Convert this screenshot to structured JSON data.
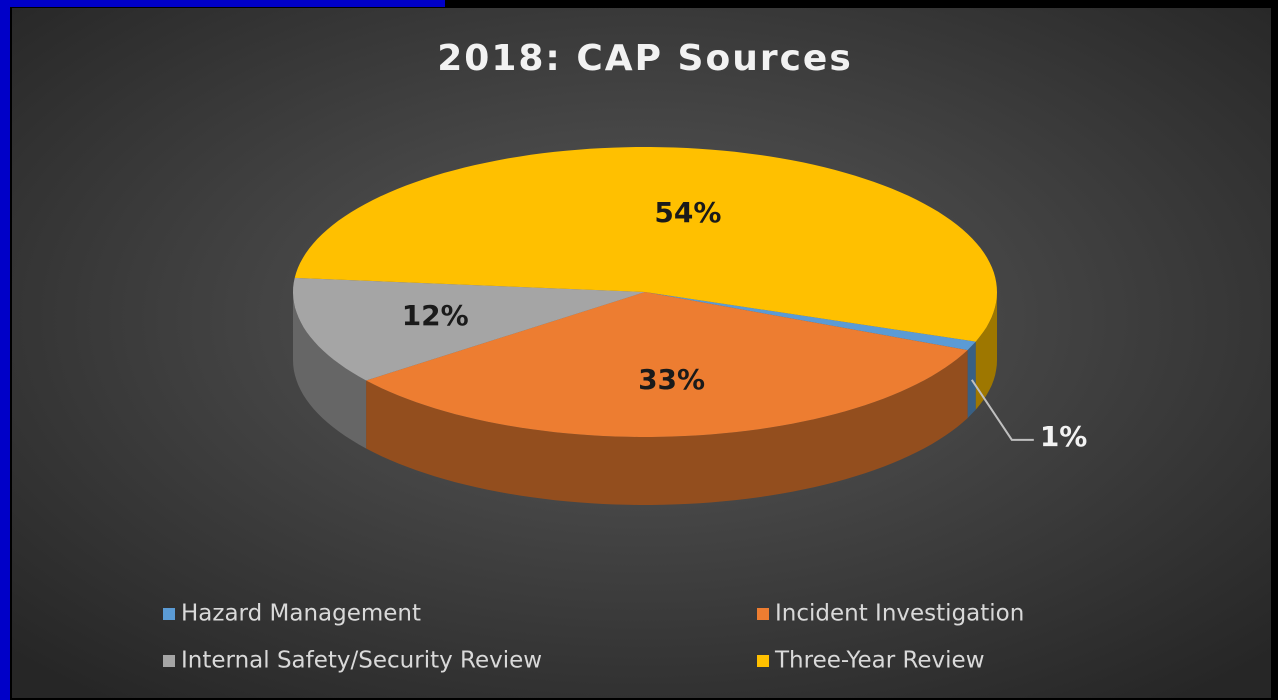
{
  "chart_data": {
    "type": "pie3d",
    "title": "2018: CAP Sources",
    "categories": [
      "Hazard Management",
      "Incident Investigation",
      "Internal Safety/Security Review",
      "Three-Year Review"
    ],
    "values": [
      1,
      33,
      12,
      54
    ],
    "value_labels": [
      "1%",
      "33%",
      "12%",
      "54%"
    ],
    "colors": [
      "#5b9bd5",
      "#ed7d31",
      "#a5a5a5",
      "#ffc000"
    ],
    "legend": "bottom"
  }
}
